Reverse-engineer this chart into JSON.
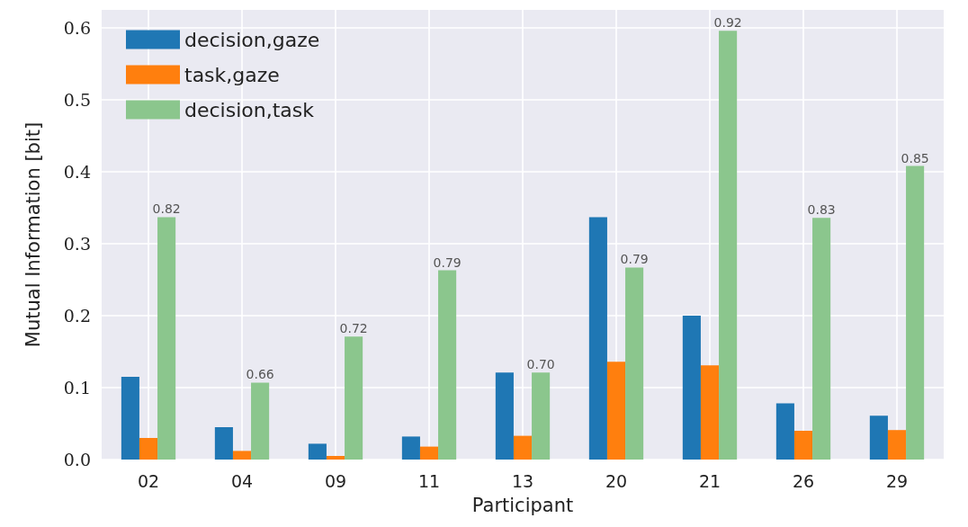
{
  "chart_data": {
    "type": "bar",
    "xlabel": "Participant",
    "ylabel": "Mutual Information [bit]",
    "categories": [
      "02",
      "04",
      "09",
      "11",
      "13",
      "20",
      "21",
      "26",
      "29"
    ],
    "series": [
      {
        "name": "decision,gaze",
        "color": "#1f77b4",
        "values": [
          0.115,
          0.045,
          0.022,
          0.032,
          0.121,
          0.337,
          0.2,
          0.078,
          0.061
        ]
      },
      {
        "name": "task,gaze",
        "color": "#ff7f0e",
        "values": [
          0.03,
          0.012,
          0.005,
          0.018,
          0.033,
          0.136,
          0.131,
          0.04,
          0.041
        ]
      },
      {
        "name": "decision,task",
        "color": "#8bc68d",
        "values": [
          0.337,
          0.107,
          0.171,
          0.263,
          0.121,
          0.267,
          0.596,
          0.336,
          0.408
        ]
      }
    ],
    "annotations": [
      "0.82",
      "0.66",
      "0.72",
      "0.79",
      "0.70",
      "0.79",
      "0.92",
      "0.83",
      "0.85"
    ],
    "ylim": [
      0,
      0.625
    ],
    "yticks": [
      {
        "value": 0,
        "label": "0.0"
      },
      0.1,
      0.2,
      0.3,
      0.4,
      0.5,
      0.6
    ],
    "grid": true,
    "legend": "top left"
  }
}
